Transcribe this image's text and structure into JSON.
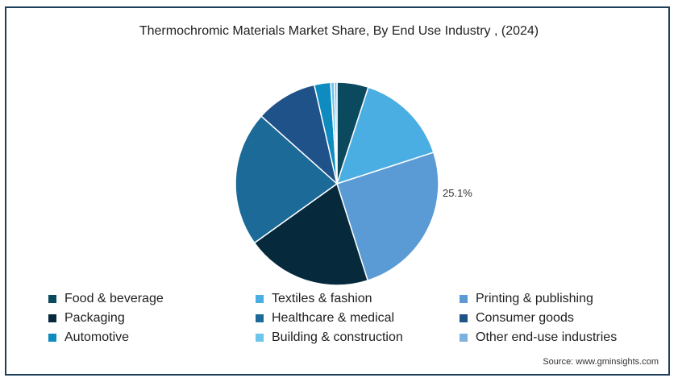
{
  "chart_data": {
    "type": "pie",
    "title": "Thermochromic Materials Market Share, By End Use Industry , (2024)",
    "slices": [
      {
        "label": "Food & beverage",
        "value": 5.0,
        "color": "#0b4a5e"
      },
      {
        "label": "Textiles & fashion",
        "value": 15.0,
        "color": "#4aaee3"
      },
      {
        "label": "Printing & publishing",
        "value": 25.1,
        "color": "#5b9bd5"
      },
      {
        "label": "Packaging",
        "value": 20.0,
        "color": "#062a3c"
      },
      {
        "label": "Healthcare & medical",
        "value": 21.5,
        "color": "#1b6a97"
      },
      {
        "label": "Consumer goods",
        "value": 9.8,
        "color": "#1e5288"
      },
      {
        "label": "Automotive",
        "value": 2.6,
        "color": "#0e8cbf"
      },
      {
        "label": "Building & construction",
        "value": 0.6,
        "color": "#6ec4ea"
      },
      {
        "label": "Other end-use industries",
        "value": 0.4,
        "color": "#7eb0e0"
      }
    ],
    "data_labels": [
      {
        "slice": "Printing & publishing",
        "text": "25.1%"
      }
    ],
    "legend_position": "bottom"
  },
  "legend": {
    "rows": [
      [
        {
          "label": "Food & beverage",
          "color": "#0b4a5e"
        },
        {
          "label": "Textiles & fashion",
          "color": "#4aaee3"
        },
        {
          "label": "Printing & publishing",
          "color": "#5b9bd5"
        }
      ],
      [
        {
          "label": "Packaging",
          "color": "#062a3c"
        },
        {
          "label": "Healthcare & medical",
          "color": "#1b6a97"
        },
        {
          "label": "Consumer goods",
          "color": "#1e5288"
        }
      ],
      [
        {
          "label": "Automotive",
          "color": "#0e8cbf"
        },
        {
          "label": "Building & construction",
          "color": "#6ec4ea"
        },
        {
          "label": "Other end-use industries",
          "color": "#7eb0e0"
        }
      ]
    ]
  },
  "source": "Source: www.gminsights.com"
}
